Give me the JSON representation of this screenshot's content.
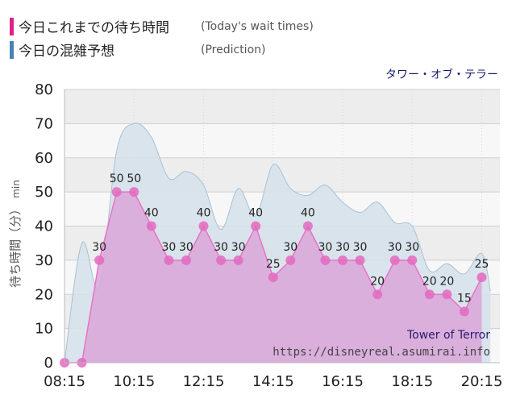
{
  "legend": {
    "today": {
      "label": "今日これまでの待ち時間",
      "sub": "(Today's wait times)",
      "color": "#e0218a"
    },
    "prediction": {
      "label": "今日の混雑予想",
      "sub": "(Prediction)",
      "color": "#4682b4"
    }
  },
  "attraction_jp": "タワー・オブ・テラー",
  "attraction_en": "Tower of Terror",
  "site_url": "https://disneyreal.asumirai.info",
  "chart_data": {
    "type": "area",
    "ylabel": "待ち時間（分）",
    "ylabel_unit": "min",
    "ylim": [
      0,
      80
    ],
    "yticks": [
      0,
      10,
      20,
      30,
      40,
      50,
      60,
      70,
      80
    ],
    "xlim": [
      "08:15",
      "20:30"
    ],
    "xticks": [
      "08:15",
      "10:15",
      "12:15",
      "14:15",
      "16:15",
      "18:15",
      "20:15"
    ],
    "grid": true,
    "colors": {
      "today_fill": "#d9a6d9",
      "today_line": "#e873c4",
      "today_point": "#e26ac0",
      "prediction_fill": "#d6e1ea",
      "prediction_line": "#a9c1d6",
      "plot_bg_dark": "#ededed",
      "plot_bg_light": "#f7f7f7"
    },
    "series": [
      {
        "name": "今日これまでの待ち時間",
        "points": [
          {
            "x": "08:15",
            "y": 0
          },
          {
            "x": "08:45",
            "y": 0
          },
          {
            "x": "09:15",
            "y": 30
          },
          {
            "x": "09:45",
            "y": 50
          },
          {
            "x": "10:15",
            "y": 50
          },
          {
            "x": "10:45",
            "y": 40
          },
          {
            "x": "11:15",
            "y": 30
          },
          {
            "x": "11:45",
            "y": 30
          },
          {
            "x": "12:15",
            "y": 40
          },
          {
            "x": "12:45",
            "y": 30
          },
          {
            "x": "13:15",
            "y": 30
          },
          {
            "x": "13:45",
            "y": 40
          },
          {
            "x": "14:15",
            "y": 25
          },
          {
            "x": "14:45",
            "y": 30
          },
          {
            "x": "15:15",
            "y": 40
          },
          {
            "x": "15:45",
            "y": 30
          },
          {
            "x": "16:15",
            "y": 30
          },
          {
            "x": "16:45",
            "y": 30
          },
          {
            "x": "17:15",
            "y": 20
          },
          {
            "x": "17:45",
            "y": 30
          },
          {
            "x": "18:15",
            "y": 30
          },
          {
            "x": "18:45",
            "y": 20
          },
          {
            "x": "19:15",
            "y": 20
          },
          {
            "x": "19:45",
            "y": 15
          },
          {
            "x": "20:15",
            "y": 25
          }
        ]
      },
      {
        "name": "今日の混雑予想",
        "points": [
          {
            "x": "08:15",
            "y": 0
          },
          {
            "x": "08:45",
            "y": 35
          },
          {
            "x": "09:15",
            "y": 22
          },
          {
            "x": "09:45",
            "y": 62
          },
          {
            "x": "10:15",
            "y": 70
          },
          {
            "x": "10:45",
            "y": 66
          },
          {
            "x": "11:15",
            "y": 54
          },
          {
            "x": "11:45",
            "y": 56
          },
          {
            "x": "12:15",
            "y": 52
          },
          {
            "x": "12:45",
            "y": 39
          },
          {
            "x": "13:15",
            "y": 51
          },
          {
            "x": "13:45",
            "y": 43
          },
          {
            "x": "14:15",
            "y": 58
          },
          {
            "x": "14:45",
            "y": 51
          },
          {
            "x": "15:15",
            "y": 49
          },
          {
            "x": "15:45",
            "y": 52
          },
          {
            "x": "16:15",
            "y": 47
          },
          {
            "x": "16:45",
            "y": 44
          },
          {
            "x": "17:15",
            "y": 47
          },
          {
            "x": "17:45",
            "y": 41
          },
          {
            "x": "18:15",
            "y": 40
          },
          {
            "x": "18:45",
            "y": 27
          },
          {
            "x": "19:15",
            "y": 29
          },
          {
            "x": "19:45",
            "y": 26
          },
          {
            "x": "20:15",
            "y": 32
          },
          {
            "x": "20:30",
            "y": 21
          }
        ]
      }
    ]
  }
}
